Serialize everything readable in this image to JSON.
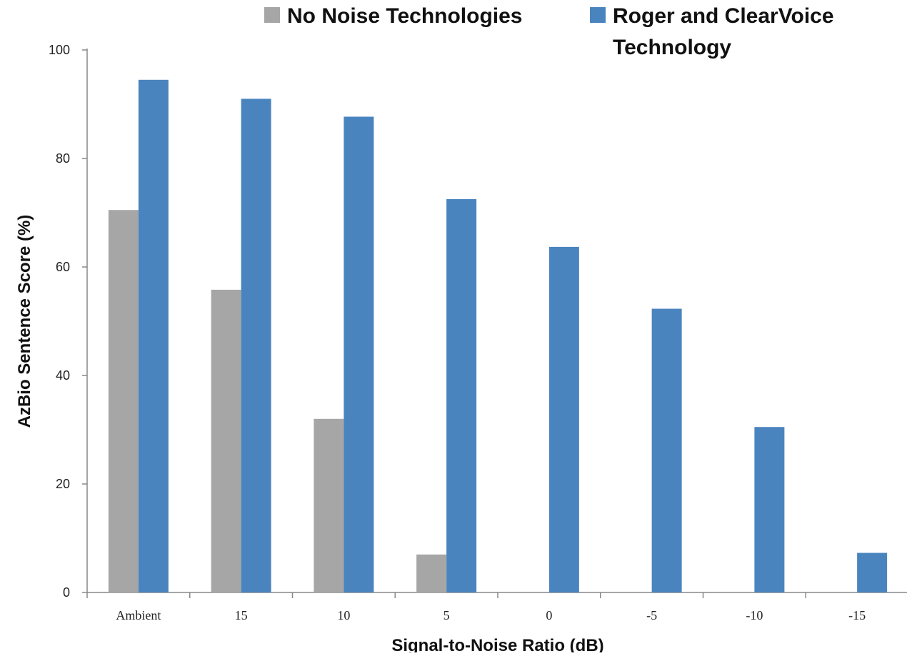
{
  "chart_data": {
    "type": "bar",
    "categories": [
      "Ambient",
      "15",
      "10",
      "5",
      "0",
      "-5",
      "-10",
      "-15"
    ],
    "series": [
      {
        "name": "No Noise Technologies",
        "color": "#a6a6a6",
        "values": [
          70.5,
          55.8,
          32.0,
          7.0,
          0,
          0,
          0,
          0
        ]
      },
      {
        "name": "Roger and ClearVoice Technology",
        "color": "#4a84be",
        "values": [
          94.5,
          91.0,
          87.7,
          72.5,
          63.7,
          52.3,
          30.5,
          7.3
        ]
      }
    ],
    "title": "",
    "xlabel": "Signal-to-Noise Ratio (dB)",
    "ylabel": "AzBio Sentence Score (%)",
    "ylim": [
      0,
      100
    ],
    "yticks": [
      0,
      20,
      40,
      60,
      80,
      100
    ],
    "legend_position": "top",
    "grid": false
  },
  "legend": {
    "item1_line1": "No Noise Technologies",
    "item2_line1": "Roger and ClearVoice",
    "item2_line2": "Technology"
  }
}
